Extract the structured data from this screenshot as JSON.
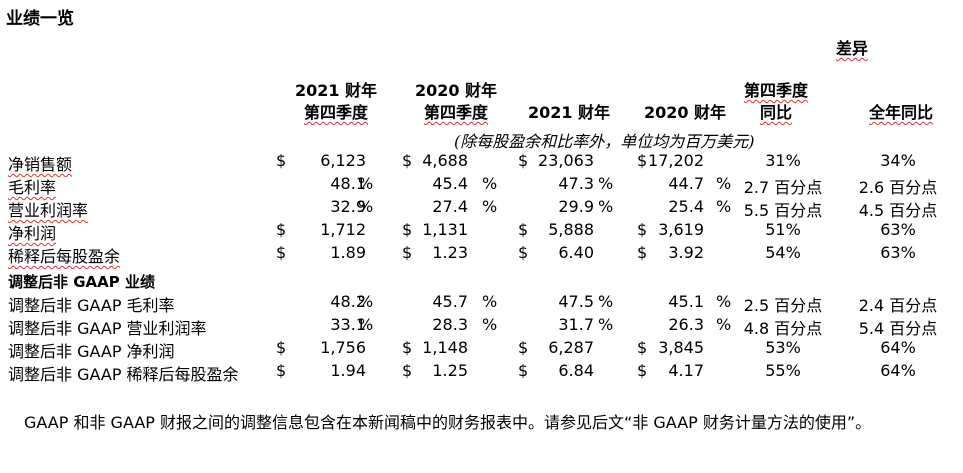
{
  "title": "业绩一览",
  "diff_header": "差异",
  "headers": {
    "fy2021_label": "2021 财年",
    "q4_label": "第四季度",
    "fy2020_label": "2020 财年",
    "q4_label_2": "第四季度",
    "fy2021_full": "2021 财年",
    "fy2020_full": "2020 财年",
    "q4_yoy_1": "第四季度",
    "q4_yoy_2": "同比",
    "full_yoy": "全年同比"
  },
  "unit_note": "(除每股盈余和比率外，单位均为百万美元)",
  "rows": [
    {
      "label": "净销售额",
      "d1": "$",
      "v1": "6,123",
      "p1": "",
      "d2": "$",
      "v2": "4,688",
      "p2": "",
      "d3": "$",
      "v3": "23,063",
      "p3": "",
      "d4": "$",
      "v4": "17,202",
      "p4": "",
      "q4": "31%",
      "fy": "34%"
    },
    {
      "label": "毛利率",
      "d1": "",
      "v1": "48.1",
      "p1": "%",
      "d2": "",
      "v2": "45.4",
      "p2": "%",
      "d3": "",
      "v3": "47.3",
      "p3": "%",
      "d4": "",
      "v4": "44.7",
      "p4": "%",
      "q4": "2.7 百分点",
      "fy": "2.6 百分点"
    },
    {
      "label": "营业利润率",
      "d1": "",
      "v1": "32.9",
      "p1": "%",
      "d2": "",
      "v2": "27.4",
      "p2": "%",
      "d3": "",
      "v3": "29.9",
      "p3": "%",
      "d4": "",
      "v4": "25.4",
      "p4": "%",
      "q4": "5.5 百分点",
      "fy": "4.5 百分点"
    },
    {
      "label": "净利润",
      "d1": "$",
      "v1": "1,712",
      "p1": "",
      "d2": "$",
      "v2": "1,131",
      "p2": "",
      "d3": "$",
      "v3": "5,888",
      "p3": "",
      "d4": "$",
      "v4": "3,619",
      "p4": "",
      "q4": "51%",
      "fy": "63%"
    },
    {
      "label": "稀释后每股盈余",
      "d1": "$",
      "v1": "1.89",
      "p1": "",
      "d2": "$",
      "v2": "1.23",
      "p2": "",
      "d3": "$",
      "v3": "6.40",
      "p3": "",
      "d4": "$",
      "v4": "3.92",
      "p4": "",
      "q4": "54%",
      "fy": "63%"
    }
  ],
  "adjusted_header": "调整后非 GAAP 业绩",
  "adj_rows": [
    {
      "label": "调整后非 GAAP 毛利率",
      "d1": "",
      "v1": "48.2",
      "p1": "%",
      "d2": "",
      "v2": "45.7",
      "p2": "%",
      "d3": "",
      "v3": "47.5",
      "p3": "%",
      "d4": "",
      "v4": "45.1",
      "p4": "%",
      "q4": "2.5 百分点",
      "fy": "2.4 百分点"
    },
    {
      "label": "调整后非 GAAP 营业利润率",
      "d1": "",
      "v1": "33.1",
      "p1": "%",
      "d2": "",
      "v2": "28.3",
      "p2": "%",
      "d3": "",
      "v3": "31.7",
      "p3": "%",
      "d4": "",
      "v4": "26.3",
      "p4": "%",
      "q4": "4.8 百分点",
      "fy": "5.4 百分点"
    },
    {
      "label": "调整后非 GAAP 净利润",
      "d1": "$",
      "v1": "1,756",
      "p1": "",
      "d2": "$",
      "v2": "1,148",
      "p2": "",
      "d3": "$",
      "v3": "6,287",
      "p3": "",
      "d4": "$",
      "v4": "3,845",
      "p4": "",
      "q4": "53%",
      "fy": "64%"
    },
    {
      "label": "调整后非 GAAP 稀释后每股盈余",
      "d1": "$",
      "v1": "1.94",
      "p1": "",
      "d2": "$",
      "v2": "1.25",
      "p2": "",
      "d3": "$",
      "v3": "6.84",
      "p3": "",
      "d4": "$",
      "v4": "4.17",
      "p4": "",
      "q4": "55%",
      "fy": "64%"
    }
  ],
  "footnote": "GAAP 和非 GAAP 财报之间的调整信息包含在本新闻稿中的财务报表中。请参见后文“非 GAAP 财务计量方法的使用”。"
}
